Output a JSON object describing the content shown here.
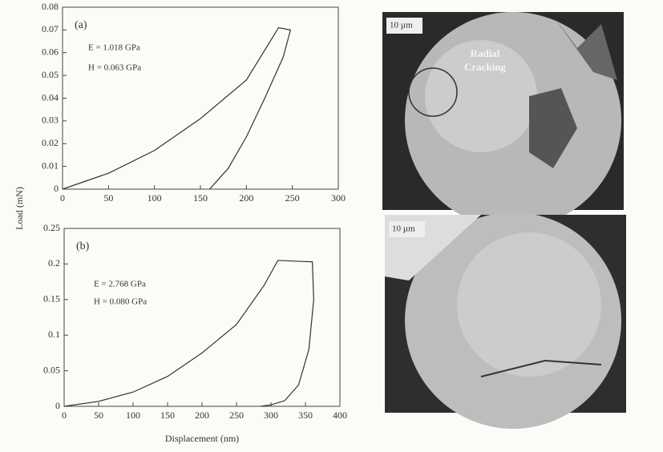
{
  "figure": {
    "ylabel": "Load (mN)",
    "xlabel": "Displacement (nm)"
  },
  "chart_data": [
    {
      "type": "line",
      "annotations": [
        "(a)",
        "E = 1.018 GPa",
        "H = 0.063 GPa"
      ],
      "x": [
        0,
        50,
        100,
        150,
        200,
        235,
        248,
        240,
        220,
        200,
        180,
        160
      ],
      "values": [
        0,
        0.007,
        0.017,
        0.031,
        0.048,
        0.071,
        0.07,
        0.058,
        0.04,
        0.023,
        0.009,
        0
      ],
      "color": "#333333",
      "xlim": [
        0,
        300
      ],
      "xticks": [
        0,
        50,
        100,
        150,
        200,
        250,
        300
      ],
      "ylim": [
        0,
        0.08
      ],
      "yticks": [
        0,
        0.01,
        0.02,
        0.03,
        0.04,
        0.05,
        0.06,
        0.07,
        0.08
      ]
    },
    {
      "type": "line",
      "annotations": [
        "(b)",
        "E = 2.768 GPa",
        "H = 0.080 GPa"
      ],
      "x": [
        0,
        50,
        100,
        150,
        200,
        250,
        290,
        310,
        360,
        362,
        355,
        340,
        320,
        300,
        285
      ],
      "values": [
        0,
        0.007,
        0.02,
        0.042,
        0.075,
        0.115,
        0.17,
        0.205,
        0.203,
        0.15,
        0.08,
        0.03,
        0.008,
        0.002,
        0
      ],
      "color": "#333333",
      "xlim": [
        0,
        400
      ],
      "xticks": [
        0,
        50,
        100,
        150,
        200,
        250,
        300,
        350,
        400
      ],
      "ylim": [
        0,
        0.25
      ],
      "yticks": [
        0,
        0.05,
        0.1,
        0.15,
        0.2,
        0.25
      ]
    }
  ],
  "images": [
    {
      "scale": "10 µm",
      "label": [
        "Radial",
        "Cracking"
      ]
    },
    {
      "scale": "10 µm"
    }
  ]
}
